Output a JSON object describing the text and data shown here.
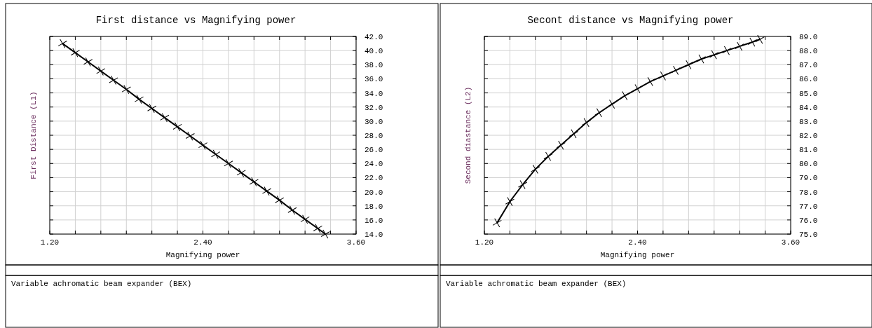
{
  "chart_data": [
    {
      "type": "line",
      "title": "First distance vs Magnifying power",
      "xlabel": "Magnifying power",
      "ylabel": "First Distance (L1)",
      "annotations": [
        "Variable achromatic beam expander (BEX)"
      ],
      "marker": "cross",
      "line_style": "solid",
      "grid": true,
      "xlim": [
        1.2,
        3.6
      ],
      "xticks": [
        {
          "value": 1.2,
          "label": "1.20"
        },
        {
          "value": 1.4,
          "label": null
        },
        {
          "value": 1.6,
          "label": null
        },
        {
          "value": 1.8,
          "label": null
        },
        {
          "value": 2.0,
          "label": null
        },
        {
          "value": 2.2,
          "label": null
        },
        {
          "value": 2.4,
          "label": "2.40"
        },
        {
          "value": 2.6,
          "label": null
        },
        {
          "value": 2.8,
          "label": null
        },
        {
          "value": 3.0,
          "label": null
        },
        {
          "value": 3.2,
          "label": null
        },
        {
          "value": 3.4,
          "label": null
        },
        {
          "value": 3.6,
          "label": "3.60"
        }
      ],
      "ylim": [
        14,
        42
      ],
      "yticks": [
        {
          "value": 14,
          "label": "14.0"
        },
        {
          "value": 16,
          "label": "16.0"
        },
        {
          "value": 18,
          "label": "18.0"
        },
        {
          "value": 20,
          "label": "20.0"
        },
        {
          "value": 22,
          "label": "22.0"
        },
        {
          "value": 24,
          "label": "24.0"
        },
        {
          "value": 26,
          "label": "26.0"
        },
        {
          "value": 28,
          "label": "28.0"
        },
        {
          "value": 30,
          "label": "30.0"
        },
        {
          "value": 32,
          "label": "32.0"
        },
        {
          "value": 34,
          "label": "34.0"
        },
        {
          "value": 36,
          "label": "36.0"
        },
        {
          "value": 38,
          "label": "38.0"
        },
        {
          "value": 40,
          "label": "40.0"
        },
        {
          "value": 42,
          "label": "42.0"
        }
      ],
      "x": [
        1.3,
        1.4,
        1.5,
        1.6,
        1.7,
        1.8,
        1.9,
        2.0,
        2.1,
        2.2,
        2.3,
        2.4,
        2.5,
        2.6,
        2.7,
        2.8,
        2.9,
        3.0,
        3.1,
        3.2,
        3.3,
        3.36
      ],
      "series": [
        {
          "color": "#000000",
          "values": [
            41.0,
            39.7,
            38.4,
            37.1,
            35.8,
            34.5,
            33.1,
            31.8,
            30.5,
            29.2,
            27.9,
            26.6,
            25.3,
            24.0,
            22.7,
            21.4,
            20.1,
            18.8,
            17.4,
            16.1,
            14.8,
            14.0
          ]
        }
      ]
    },
    {
      "type": "line",
      "title": "Secont distance vs Magnifying power",
      "xlabel": "Magnifying power",
      "ylabel": "Second diastance (L2)",
      "annotations": [
        "Variable achromatic beam expander (BEX)"
      ],
      "marker": "cross",
      "line_style": "solid",
      "grid": true,
      "xlim": [
        1.2,
        3.6
      ],
      "xticks": [
        {
          "value": 1.2,
          "label": "1.20"
        },
        {
          "value": 1.4,
          "label": null
        },
        {
          "value": 1.6,
          "label": null
        },
        {
          "value": 1.8,
          "label": null
        },
        {
          "value": 2.0,
          "label": null
        },
        {
          "value": 2.2,
          "label": null
        },
        {
          "value": 2.4,
          "label": "2.40"
        },
        {
          "value": 2.6,
          "label": null
        },
        {
          "value": 2.8,
          "label": null
        },
        {
          "value": 3.0,
          "label": null
        },
        {
          "value": 3.2,
          "label": null
        },
        {
          "value": 3.4,
          "label": null
        },
        {
          "value": 3.6,
          "label": "3.60"
        }
      ],
      "ylim": [
        75,
        89
      ],
      "yticks": [
        {
          "value": 75,
          "label": "75.0"
        },
        {
          "value": 76,
          "label": "76.0"
        },
        {
          "value": 77,
          "label": "77.0"
        },
        {
          "value": 78,
          "label": "78.0"
        },
        {
          "value": 79,
          "label": "79.0"
        },
        {
          "value": 80,
          "label": "80.0"
        },
        {
          "value": 81,
          "label": "81.0"
        },
        {
          "value": 82,
          "label": "82.0"
        },
        {
          "value": 83,
          "label": "83.0"
        },
        {
          "value": 84,
          "label": "84.0"
        },
        {
          "value": 85,
          "label": "85.0"
        },
        {
          "value": 86,
          "label": "86.0"
        },
        {
          "value": 87,
          "label": "87.0"
        },
        {
          "value": 88,
          "label": "88.0"
        },
        {
          "value": 89,
          "label": "89.0"
        }
      ],
      "x": [
        1.3,
        1.4,
        1.5,
        1.6,
        1.7,
        1.8,
        1.9,
        2.0,
        2.1,
        2.2,
        2.3,
        2.4,
        2.5,
        2.6,
        2.7,
        2.8,
        2.9,
        3.0,
        3.1,
        3.2,
        3.3,
        3.36
      ],
      "series": [
        {
          "color": "#000000",
          "values": [
            75.8,
            77.3,
            78.5,
            79.6,
            80.5,
            81.3,
            82.1,
            82.9,
            83.6,
            84.2,
            84.8,
            85.3,
            85.8,
            86.2,
            86.6,
            87.0,
            87.4,
            87.7,
            88.0,
            88.3,
            88.6,
            88.8
          ]
        }
      ]
    }
  ]
}
